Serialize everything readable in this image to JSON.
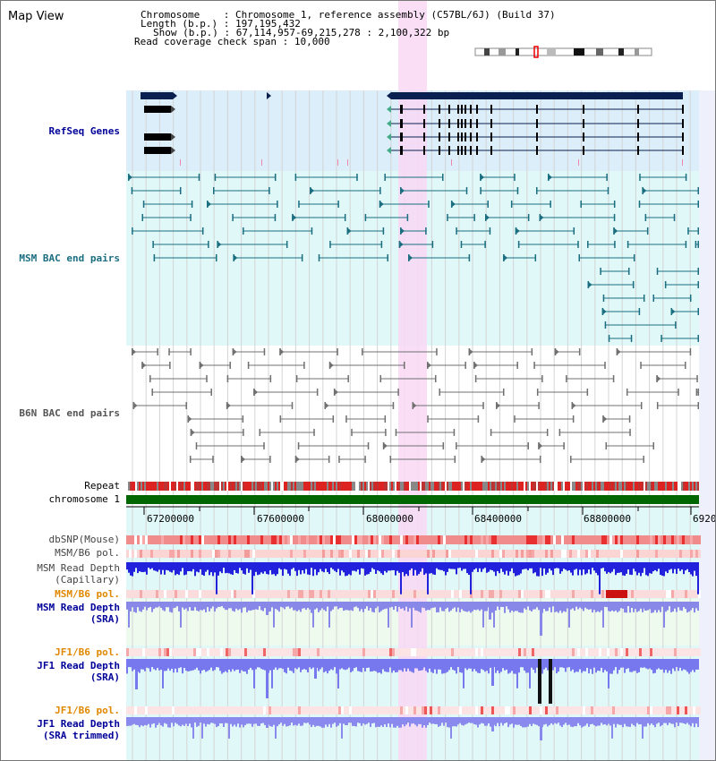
{
  "header": {
    "title": "Map View",
    "chromosome_label": "Chromosome",
    "chromosome_value": "Chromosome 1, reference assembly (C57BL/6J) (Build 37)",
    "length_label": "Length (b.p.)",
    "length_value": "197,195,432",
    "show_label": "Show (b.p.)",
    "show_value": "67,114,957-69,215,278 : 2,100,322 bp",
    "coverage_label": "Read coverage check span",
    "coverage_value": "10,000"
  },
  "tracks": {
    "refseq": "RefSeq Genes",
    "msm_bac": "MSM BAC end pairs",
    "b6n_bac": "B6N BAC end pairs",
    "repeat": "Repeat",
    "chromosome": "chromosome 1",
    "dbsnp": "dbSNP(Mouse)",
    "msm_b6_pol_1": "MSM/B6 pol.",
    "msm_depth_cap_1": "MSM Read Depth",
    "msm_depth_cap_2": "(Capillary)",
    "msm_b6_pol_2": "MSM/B6 pol.",
    "msm_depth_sra_1": "MSM Read Depth",
    "msm_depth_sra_2": "(SRA)",
    "jf1_b6_pol_1": "JF1/B6 pol.",
    "jf1_depth_sra_1": "JF1 Read Depth",
    "jf1_depth_sra_2": "(SRA)",
    "jf1_b6_pol_2": "JF1/B6 pol.",
    "jf1_depth_trim_1": "JF1 Read Depth",
    "jf1_depth_trim_2": "(SRA trimmed)"
  },
  "axis": {
    "ticks": [
      "67200000",
      "67600000",
      "68000000",
      "68400000",
      "68800000",
      "6920"
    ]
  },
  "colors": {
    "refseq_bg": "#dceefa",
    "msm_bg": "#e0f8f8",
    "highlight": "#f8d8f4",
    "gene_dark": "#0a2050",
    "msm_line": "#1a6e80",
    "b6n_line": "#707070",
    "chrom_bar": "#006600",
    "snp_red": "#ee4444",
    "depth_blue": "#2222dd",
    "depth_light": "#7777ee",
    "orange_label": "#e08800",
    "navy_label": "#000099"
  }
}
